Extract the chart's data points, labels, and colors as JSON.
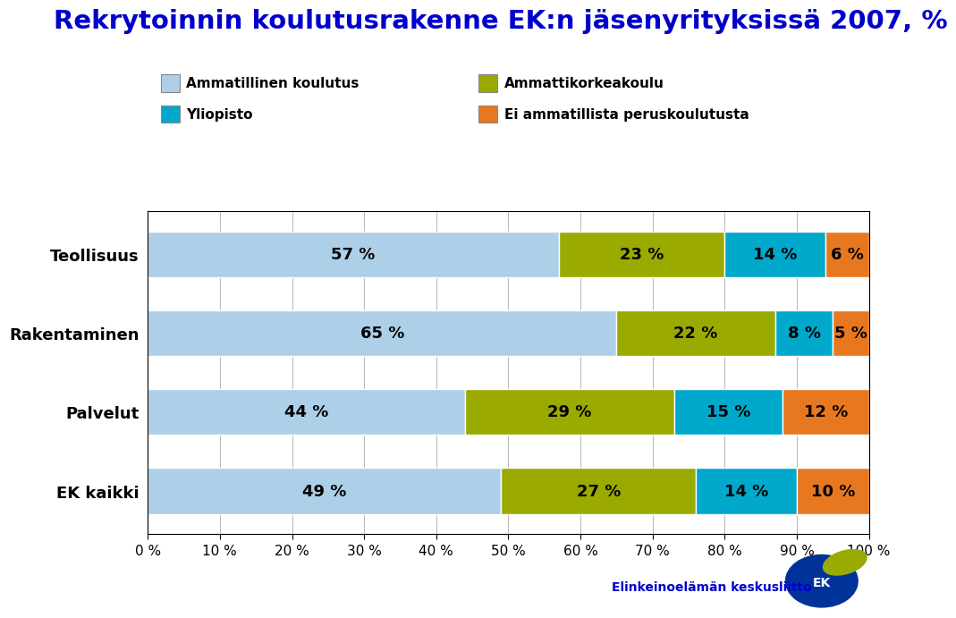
{
  "title": "Rekrytoinnin koulutusrakenne EK:n jäsenyrityksissä 2007, %",
  "title_color": "#0000cc",
  "categories": [
    "Teollisuus",
    "Rakentaminen",
    "Palvelut",
    "EK kaikki"
  ],
  "series": {
    "Ammatillinen koulutus": [
      57,
      65,
      44,
      49
    ],
    "Ammattikorkeakoulu": [
      23,
      22,
      29,
      27
    ],
    "Yliopisto": [
      14,
      8,
      15,
      14
    ],
    "Ei ammatillista peruskoulutusta": [
      6,
      5,
      12,
      10
    ]
  },
  "colors": {
    "Ammatillinen koulutus": "#aecfe8",
    "Ammattikorkeakoulu": "#9aaa00",
    "Yliopisto": "#00a8cc",
    "Ei ammatillista peruskoulutusta": "#e87820"
  },
  "xticks": [
    0,
    10,
    20,
    30,
    40,
    50,
    60,
    70,
    80,
    90,
    100
  ],
  "xtick_labels": [
    "0 %",
    "10 %",
    "20 %",
    "30 %",
    "40 %",
    "50 %",
    "60 %",
    "70 %",
    "80 %",
    "90 %",
    "100 %"
  ],
  "bar_height": 0.58,
  "background_color": "#ffffff",
  "grid_color": "#bbbbbb",
  "label_fontsize": 13,
  "title_fontsize": 21,
  "tick_fontsize": 11,
  "category_fontsize": 13,
  "legend_fontsize": 11
}
